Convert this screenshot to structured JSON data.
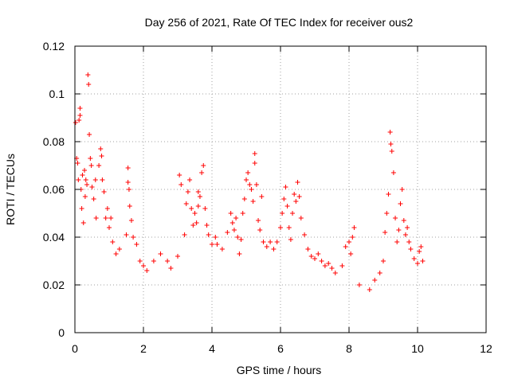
{
  "chart_data": {
    "type": "scatter",
    "title": "Day 256 of 2021, Rate Of TEC Index for receiver ous2",
    "xlabel": "GPS time / hours",
    "ylabel": "ROTI / TECUs",
    "xlim": [
      0,
      12
    ],
    "ylim": [
      0,
      0.12
    ],
    "xticks": [
      0,
      2,
      4,
      6,
      8,
      10,
      12
    ],
    "yticks": [
      0,
      0.02,
      0.04,
      0.06,
      0.08,
      0.1,
      0.12
    ],
    "xtick_labels": [
      "0",
      "2",
      "4",
      "6",
      "8",
      "10",
      "12"
    ],
    "ytick_labels": [
      "0",
      "0.02",
      "0.04",
      "0.06",
      "0.08",
      "0.1",
      "0.12"
    ],
    "grid": true,
    "marker": "+",
    "color": "#ff0000",
    "series": [
      {
        "name": "ROTI",
        "points": [
          [
            0.02,
            0.088
          ],
          [
            0.05,
            0.073
          ],
          [
            0.08,
            0.071
          ],
          [
            0.1,
            0.064
          ],
          [
            0.12,
            0.089
          ],
          [
            0.15,
            0.091
          ],
          [
            0.15,
            0.094
          ],
          [
            0.18,
            0.06
          ],
          [
            0.2,
            0.052
          ],
          [
            0.22,
            0.066
          ],
          [
            0.25,
            0.046
          ],
          [
            0.28,
            0.068
          ],
          [
            0.3,
            0.057
          ],
          [
            0.32,
            0.064
          ],
          [
            0.35,
            0.062
          ],
          [
            0.38,
            0.108
          ],
          [
            0.4,
            0.104
          ],
          [
            0.42,
            0.083
          ],
          [
            0.45,
            0.073
          ],
          [
            0.48,
            0.07
          ],
          [
            0.5,
            0.061
          ],
          [
            0.55,
            0.056
          ],
          [
            0.6,
            0.064
          ],
          [
            0.62,
            0.048
          ],
          [
            0.7,
            0.07
          ],
          [
            0.75,
            0.077
          ],
          [
            0.78,
            0.074
          ],
          [
            0.8,
            0.064
          ],
          [
            0.85,
            0.059
          ],
          [
            0.9,
            0.048
          ],
          [
            0.95,
            0.052
          ],
          [
            1.0,
            0.044
          ],
          [
            1.05,
            0.048
          ],
          [
            1.1,
            0.038
          ],
          [
            1.2,
            0.033
          ],
          [
            1.3,
            0.035
          ],
          [
            1.5,
            0.041
          ],
          [
            1.55,
            0.063
          ],
          [
            1.55,
            0.069
          ],
          [
            1.58,
            0.06
          ],
          [
            1.6,
            0.053
          ],
          [
            1.65,
            0.047
          ],
          [
            1.7,
            0.04
          ],
          [
            1.8,
            0.037
          ],
          [
            1.9,
            0.03
          ],
          [
            2.0,
            0.028
          ],
          [
            2.1,
            0.026
          ],
          [
            2.3,
            0.03
          ],
          [
            2.5,
            0.033
          ],
          [
            2.7,
            0.03
          ],
          [
            2.8,
            0.027
          ],
          [
            3.0,
            0.032
          ],
          [
            3.05,
            0.066
          ],
          [
            3.1,
            0.062
          ],
          [
            3.2,
            0.041
          ],
          [
            3.25,
            0.054
          ],
          [
            3.3,
            0.059
          ],
          [
            3.35,
            0.064
          ],
          [
            3.4,
            0.052
          ],
          [
            3.45,
            0.045
          ],
          [
            3.5,
            0.05
          ],
          [
            3.55,
            0.046
          ],
          [
            3.6,
            0.053
          ],
          [
            3.6,
            0.059
          ],
          [
            3.65,
            0.057
          ],
          [
            3.7,
            0.067
          ],
          [
            3.75,
            0.07
          ],
          [
            3.8,
            0.052
          ],
          [
            3.85,
            0.045
          ],
          [
            3.9,
            0.041
          ],
          [
            4.0,
            0.037
          ],
          [
            4.1,
            0.04
          ],
          [
            4.15,
            0.037
          ],
          [
            4.3,
            0.035
          ],
          [
            4.45,
            0.042
          ],
          [
            4.55,
            0.05
          ],
          [
            4.6,
            0.046
          ],
          [
            4.65,
            0.043
          ],
          [
            4.7,
            0.048
          ],
          [
            4.75,
            0.04
          ],
          [
            4.8,
            0.033
          ],
          [
            4.85,
            0.039
          ],
          [
            4.9,
            0.05
          ],
          [
            4.95,
            0.056
          ],
          [
            5.0,
            0.064
          ],
          [
            5.05,
            0.067
          ],
          [
            5.1,
            0.062
          ],
          [
            5.15,
            0.06
          ],
          [
            5.2,
            0.055
          ],
          [
            5.25,
            0.071
          ],
          [
            5.25,
            0.075
          ],
          [
            5.3,
            0.062
          ],
          [
            5.35,
            0.047
          ],
          [
            5.4,
            0.043
          ],
          [
            5.45,
            0.057
          ],
          [
            5.5,
            0.038
          ],
          [
            5.6,
            0.036
          ],
          [
            5.7,
            0.038
          ],
          [
            5.8,
            0.035
          ],
          [
            5.9,
            0.038
          ],
          [
            6.0,
            0.044
          ],
          [
            6.05,
            0.05
          ],
          [
            6.1,
            0.056
          ],
          [
            6.15,
            0.061
          ],
          [
            6.2,
            0.053
          ],
          [
            6.25,
            0.044
          ],
          [
            6.3,
            0.039
          ],
          [
            6.35,
            0.05
          ],
          [
            6.4,
            0.058
          ],
          [
            6.45,
            0.055
          ],
          [
            6.5,
            0.063
          ],
          [
            6.55,
            0.057
          ],
          [
            6.6,
            0.048
          ],
          [
            6.7,
            0.041
          ],
          [
            6.8,
            0.035
          ],
          [
            6.9,
            0.032
          ],
          [
            7.0,
            0.031
          ],
          [
            7.1,
            0.033
          ],
          [
            7.2,
            0.03
          ],
          [
            7.3,
            0.028
          ],
          [
            7.4,
            0.029
          ],
          [
            7.5,
            0.027
          ],
          [
            7.6,
            0.025
          ],
          [
            7.8,
            0.028
          ],
          [
            7.9,
            0.036
          ],
          [
            8.0,
            0.038
          ],
          [
            8.05,
            0.033
          ],
          [
            8.1,
            0.04
          ],
          [
            8.15,
            0.044
          ],
          [
            8.3,
            0.02
          ],
          [
            8.6,
            0.018
          ],
          [
            8.75,
            0.022
          ],
          [
            8.9,
            0.025
          ],
          [
            9.0,
            0.03
          ],
          [
            9.05,
            0.042
          ],
          [
            9.1,
            0.05
          ],
          [
            9.15,
            0.058
          ],
          [
            9.2,
            0.084
          ],
          [
            9.22,
            0.079
          ],
          [
            9.25,
            0.076
          ],
          [
            9.3,
            0.067
          ],
          [
            9.35,
            0.048
          ],
          [
            9.4,
            0.038
          ],
          [
            9.45,
            0.043
          ],
          [
            9.5,
            0.054
          ],
          [
            9.55,
            0.06
          ],
          [
            9.6,
            0.047
          ],
          [
            9.65,
            0.041
          ],
          [
            9.7,
            0.044
          ],
          [
            9.75,
            0.038
          ],
          [
            9.8,
            0.035
          ],
          [
            9.9,
            0.031
          ],
          [
            10.0,
            0.029
          ],
          [
            10.05,
            0.034
          ],
          [
            10.1,
            0.036
          ],
          [
            10.15,
            0.03
          ]
        ]
      }
    ]
  }
}
